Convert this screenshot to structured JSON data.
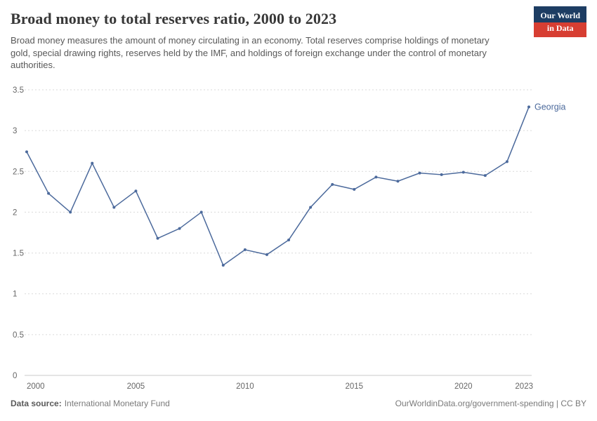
{
  "header": {
    "title": "Broad money to total reserves ratio, 2000 to 2023",
    "subtitle": "Broad money measures the amount of money circulating in an economy. Total reserves comprise holdings of monetary gold, special drawing rights, reserves held by the IMF, and holdings of foreign exchange under the control of monetary authorities.",
    "logo": {
      "line1": "Our World",
      "line2": "in Data",
      "bg": "#1d3d63",
      "accent": "#d73e32"
    }
  },
  "chart_data": {
    "type": "line",
    "title": "Broad money to total reserves ratio, 2000 to 2023",
    "xlabel": "",
    "ylabel": "",
    "xlim": [
      2000,
      2023
    ],
    "ylim": [
      0,
      3.5
    ],
    "yticks": [
      0,
      0.5,
      1,
      1.5,
      2,
      2.5,
      3,
      3.5
    ],
    "xticks": [
      2000,
      2005,
      2010,
      2015,
      2020,
      2023
    ],
    "grid": "horizontal-dotted",
    "legend_position": "end-of-line-label",
    "colors": {
      "grid": "#d9d9d9",
      "axis": "#c8c8c8",
      "tick_text": "#666666"
    },
    "series": [
      {
        "name": "Georgia",
        "color": "#4C6A9C",
        "x": [
          2000,
          2001,
          2002,
          2003,
          2004,
          2005,
          2006,
          2007,
          2008,
          2009,
          2010,
          2011,
          2012,
          2013,
          2014,
          2015,
          2016,
          2017,
          2018,
          2019,
          2020,
          2021,
          2022,
          2023
        ],
        "values": [
          2.74,
          2.23,
          2.0,
          2.6,
          2.06,
          2.26,
          1.68,
          1.8,
          2.0,
          1.35,
          1.54,
          1.48,
          1.66,
          2.06,
          2.34,
          2.28,
          2.43,
          2.38,
          2.48,
          2.46,
          2.49,
          2.45,
          2.62,
          3.29
        ]
      }
    ]
  },
  "footer": {
    "source_label": "Data source:",
    "source_value": "International Monetary Fund",
    "right_text": "OurWorldinData.org/government-spending | CC BY"
  }
}
